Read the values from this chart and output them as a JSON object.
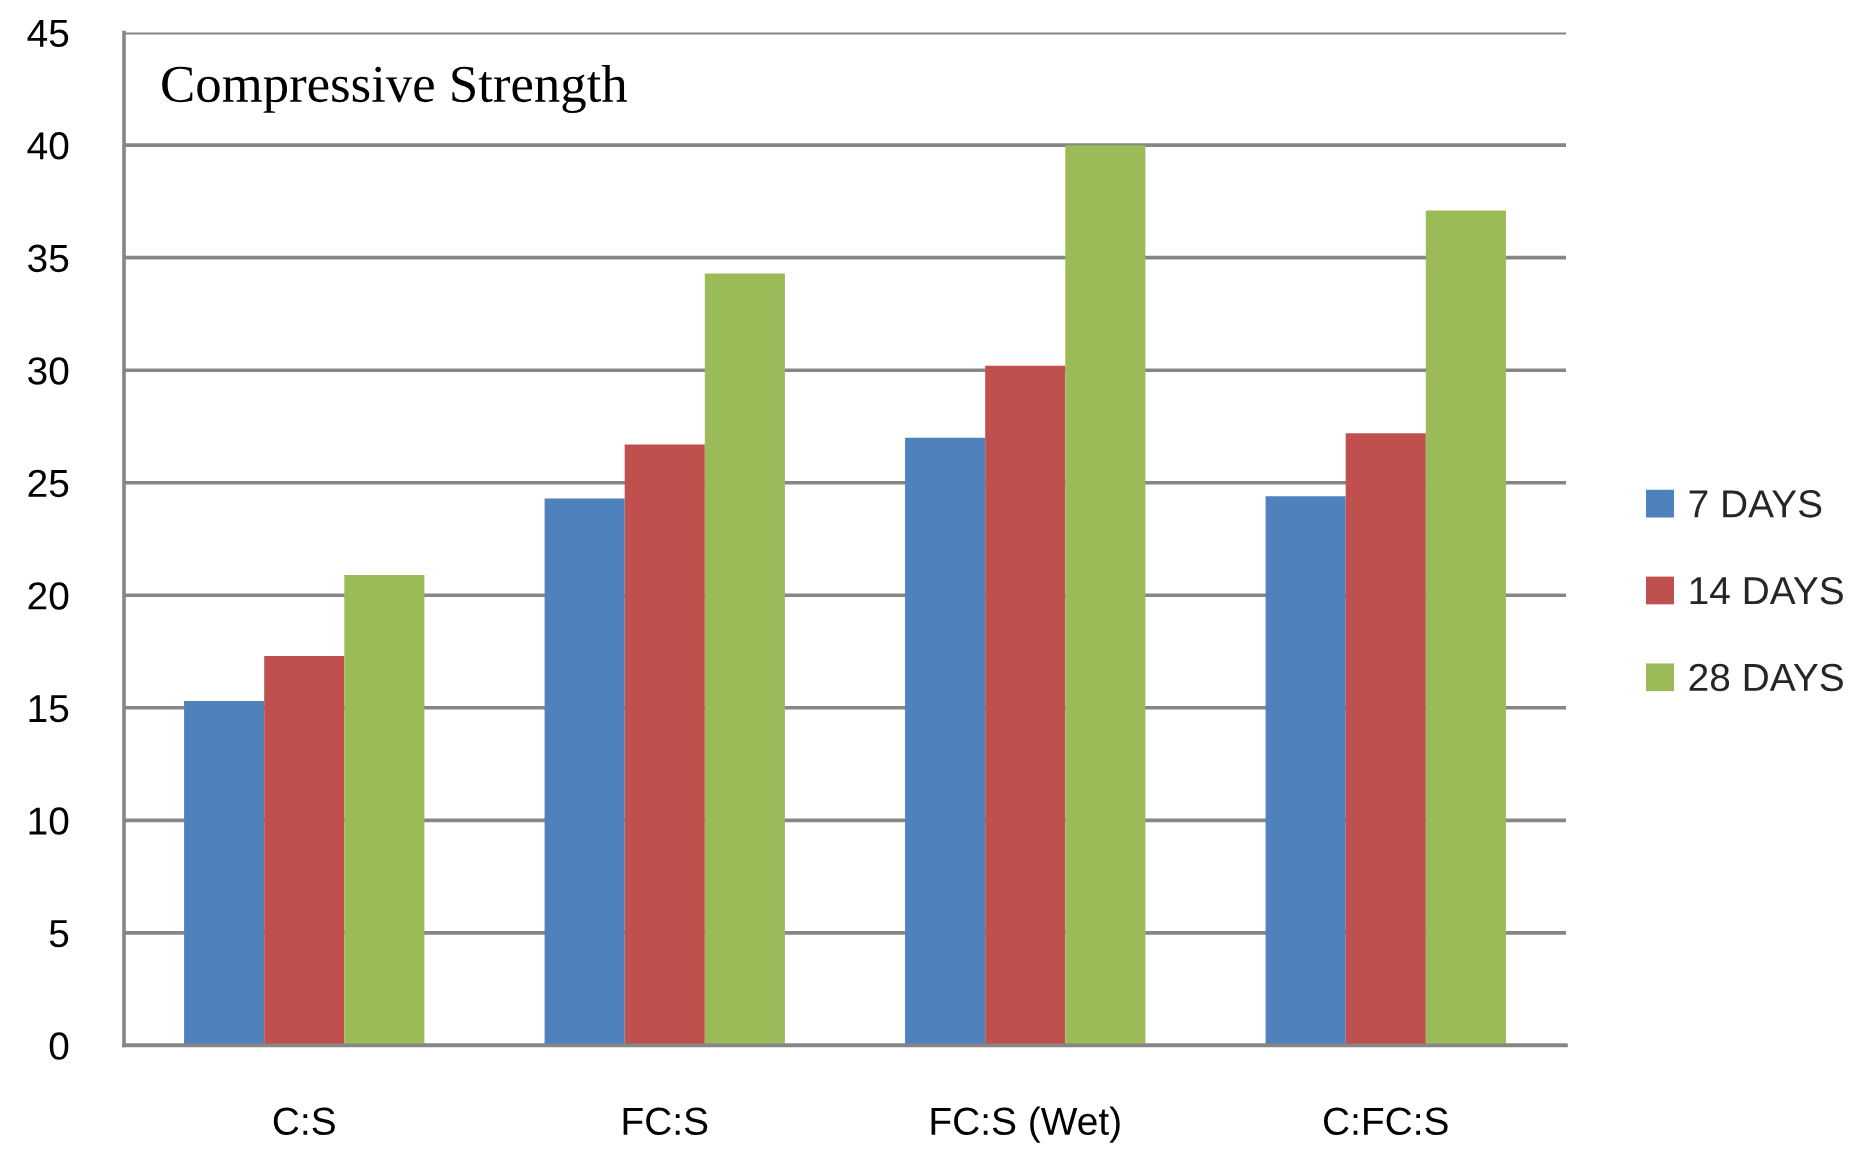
{
  "chart_data": {
    "type": "bar",
    "title": "Compressive Strength",
    "categories": [
      "C:S",
      "FC:S",
      "FC:S (Wet)",
      "C:FC:S"
    ],
    "series": [
      {
        "name": "7 DAYS",
        "color": "#4f81bd",
        "values": [
          15.3,
          24.3,
          27.0,
          24.4
        ]
      },
      {
        "name": "14 DAYS",
        "color": "#c0504d",
        "values": [
          17.3,
          26.7,
          30.2,
          27.2
        ]
      },
      {
        "name": "28 DAYS",
        "color": "#9bbb59",
        "values": [
          20.9,
          34.3,
          40.0,
          37.1
        ]
      }
    ],
    "ylim": [
      0,
      45
    ],
    "yticks": [
      0,
      5,
      10,
      15,
      20,
      25,
      30,
      35,
      40,
      45
    ],
    "grid": "y",
    "legend": "right"
  }
}
